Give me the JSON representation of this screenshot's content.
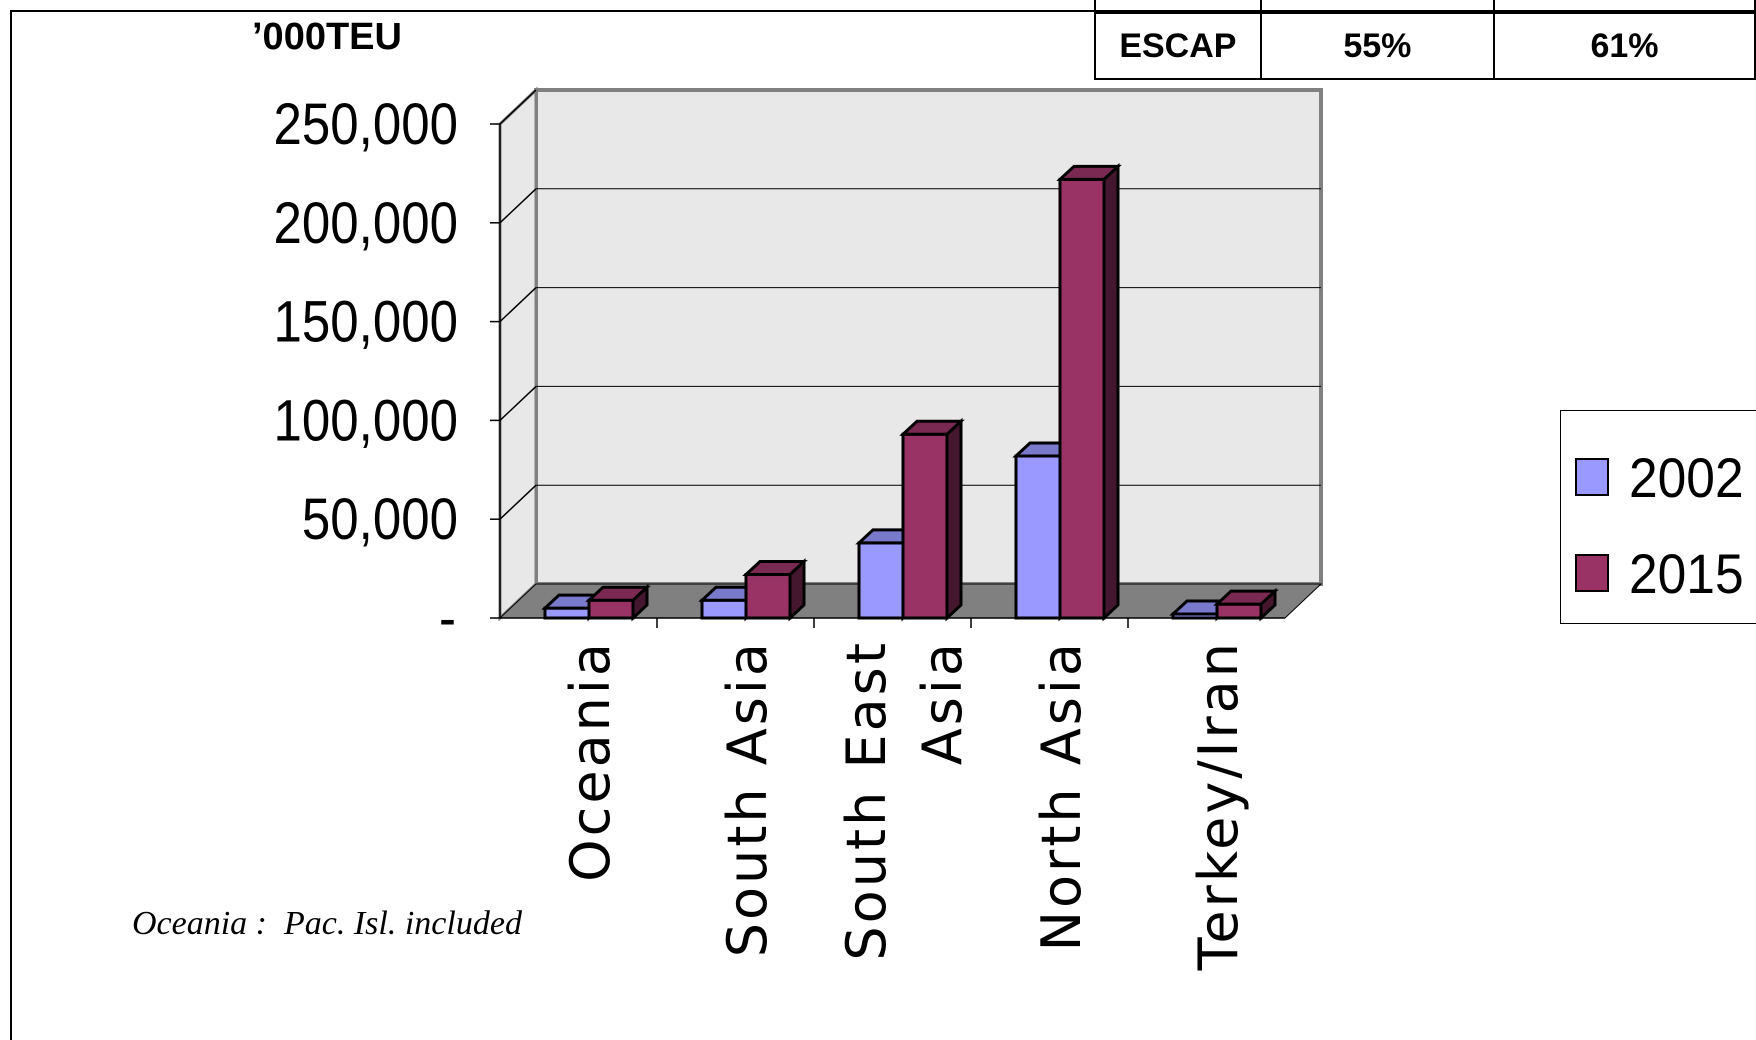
{
  "unit_label": "’000TEU",
  "share_table": {
    "row_label": "ESCAP",
    "values": [
      "55%",
      "61%"
    ]
  },
  "note": "Oceania :  Pac. Isl. included",
  "colors": {
    "series_2002": "#9999ff",
    "series_2015": "#993366",
    "wall": "#e8e8e8",
    "floor": "#808080"
  },
  "chart_data": {
    "type": "bar",
    "title": "",
    "xlabel": "",
    "ylabel": "’000TEU",
    "ylim": [
      0,
      250000
    ],
    "y_ticks": [
      {
        "value": 0,
        "label": "-"
      },
      {
        "value": 50000,
        "label": "50,000"
      },
      {
        "value": 100000,
        "label": "100,000"
      },
      {
        "value": 150000,
        "label": "150,000"
      },
      {
        "value": 200000,
        "label": "200,000"
      },
      {
        "value": 250000,
        "label": "250,000"
      }
    ],
    "categories": [
      {
        "name": "Oceania",
        "lines": [
          "Oceania"
        ]
      },
      {
        "name": "South Asia",
        "lines": [
          "South Asia"
        ]
      },
      {
        "name": "South East Asia",
        "lines": [
          "South East",
          "Asia"
        ]
      },
      {
        "name": "North Asia",
        "lines": [
          "North Asia"
        ]
      },
      {
        "name": "Terkey/Iran",
        "lines": [
          "Terkey/Iran"
        ]
      }
    ],
    "series": [
      {
        "name": "2002",
        "values": [
          5000,
          9000,
          38000,
          82000,
          2000
        ]
      },
      {
        "name": "2015",
        "values": [
          9000,
          22000,
          93000,
          222000,
          7000
        ]
      }
    ],
    "legend_position": "right",
    "grid": true
  }
}
